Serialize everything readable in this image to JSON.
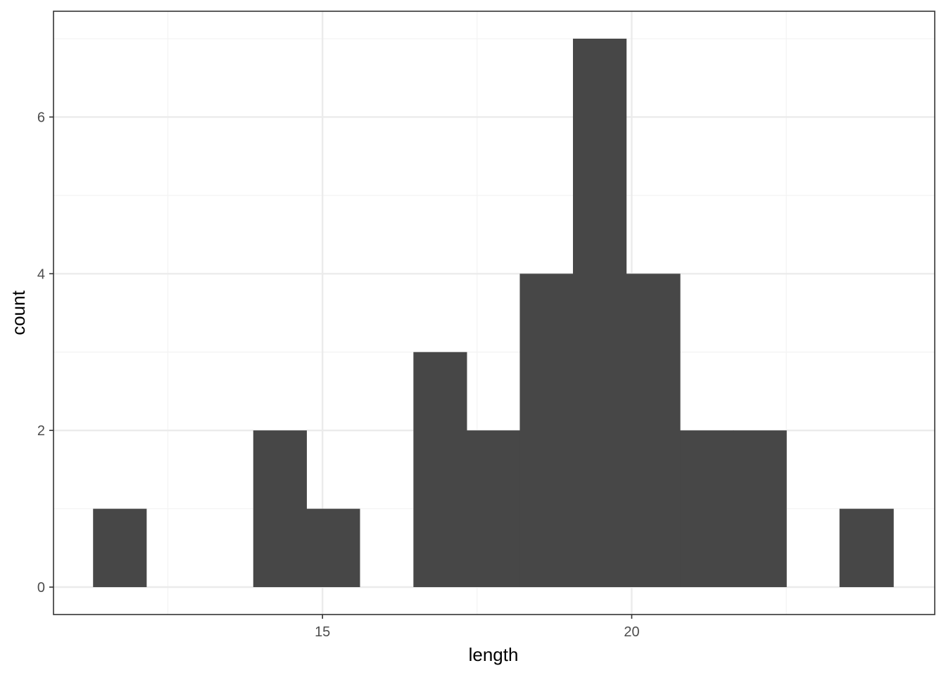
{
  "chart_data": {
    "type": "bar",
    "title": "",
    "xlabel": "length",
    "ylabel": "count",
    "xlim": [
      10.65,
      24.9
    ],
    "ylim": [
      -0.35,
      7.35
    ],
    "bin_width": 0.862,
    "bins": [
      {
        "start": 11.29,
        "end": 12.15,
        "count": 1
      },
      {
        "start": 13.88,
        "end": 14.74,
        "count": 2
      },
      {
        "start": 14.74,
        "end": 15.6,
        "count": 1
      },
      {
        "start": 16.47,
        "end": 17.33,
        "count": 3
      },
      {
        "start": 17.33,
        "end": 18.19,
        "count": 2
      },
      {
        "start": 18.19,
        "end": 19.05,
        "count": 4
      },
      {
        "start": 19.05,
        "end": 19.91,
        "count": 7
      },
      {
        "start": 19.91,
        "end": 20.78,
        "count": 4
      },
      {
        "start": 20.78,
        "end": 21.64,
        "count": 2
      },
      {
        "start": 21.64,
        "end": 22.5,
        "count": 2
      },
      {
        "start": 23.36,
        "end": 24.23,
        "count": 1
      }
    ],
    "x_ticks": [
      15,
      20
    ],
    "x_tick_labels": [
      "15",
      "20"
    ],
    "x_minor_ticks": [
      12.5,
      17.5,
      22.5
    ],
    "y_ticks": [
      0,
      2,
      4,
      6
    ],
    "y_tick_labels": [
      "0",
      "2",
      "4",
      "6"
    ],
    "y_minor_ticks": [
      1,
      3,
      5,
      7
    ],
    "grid": true,
    "legend": "none",
    "colors": {
      "bar": "#474747",
      "panel_border": "#333333",
      "grid_major": "#ebebeb",
      "grid_minor": "#f3f3f3",
      "tick_text": "#4d4d4d"
    }
  }
}
